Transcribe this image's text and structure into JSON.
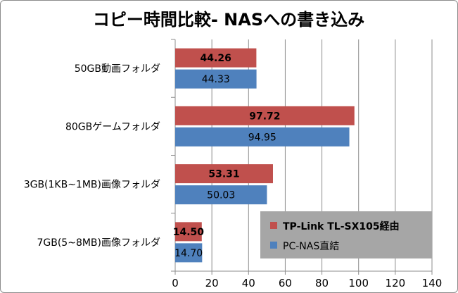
{
  "chart_data": {
    "type": "bar",
    "orientation": "horizontal",
    "title": "コピー時間比較- NASへの書き込み",
    "xlabel": "",
    "ylabel": "",
    "xlim": [
      0,
      140
    ],
    "xticks": [
      0,
      20,
      40,
      60,
      80,
      100,
      120,
      140
    ],
    "grid": true,
    "legend_position": "bottom-right",
    "categories": [
      "50GB動画フォルダ",
      "80GBゲームフォルダ",
      "3GB(1KB~1MB)画像フォルダ",
      "7GB(5~8MB)画像フォルダ"
    ],
    "series": [
      {
        "name": "TP-Link TL-SX105経由",
        "color": "#c0504d",
        "values": [
          44.26,
          97.72,
          53.31,
          14.5
        ],
        "labels": [
          "44.26",
          "97.72",
          "53.31",
          "14.50"
        ],
        "bold_labels": true
      },
      {
        "name": "PC-NAS直結",
        "color": "#4f81bd",
        "values": [
          44.33,
          94.95,
          50.03,
          14.7
        ],
        "labels": [
          "44.33",
          "94.95",
          "50.03",
          "14.70"
        ],
        "bold_labels": false
      }
    ]
  }
}
